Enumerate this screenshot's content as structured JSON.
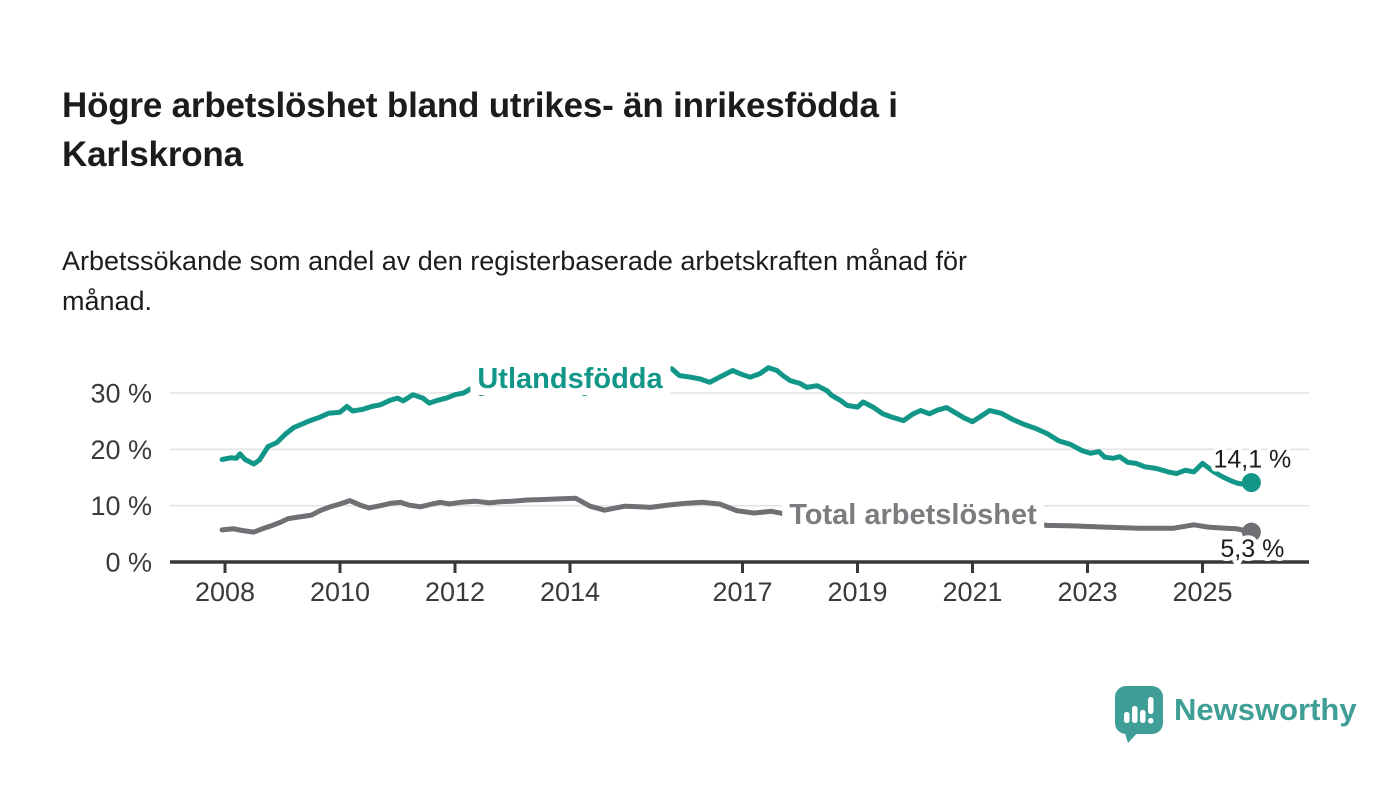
{
  "header": {
    "title_lines": [
      "Högre arbetslöshet bland utrikes- än inrikesfödda i",
      "Karlskrona"
    ],
    "subtitle_lines": [
      "Arbetssökande som andel av den registerbaserade arbetskraften månad för",
      "månad."
    ]
  },
  "footer": {
    "brand": "Newsworthy",
    "logo_icon": "bar-chart-speech-bubble-icon"
  },
  "colors": {
    "teal_line": "#119688",
    "gray_line": "#6f6f74",
    "gray_label": "#7b7b80",
    "axis": "#383838",
    "tick_text": "#3a3a3a",
    "grid": "#e3e3e3",
    "value_text": "#1c1c1c",
    "logo": "#3f9e96",
    "halo": "#ffffff"
  },
  "chart_data": {
    "type": "line",
    "title": "Högre arbetslöshet bland utrikes- än inrikesfödda i Karlskrona",
    "subtitle": "Arbetssökande som andel av den registerbaserade arbetskraften månad för månad.",
    "grid": true,
    "legend_position": "inline-labels",
    "x_axis": {
      "range": [
        2007.05,
        2026.85
      ],
      "ticks": [
        2008,
        2010,
        2012,
        2014,
        2017,
        2019,
        2021,
        2023,
        2025
      ],
      "tick_labels": [
        "2008",
        "2010",
        "2012",
        "2014",
        "2017",
        "2019",
        "2021",
        "2023",
        "2025"
      ]
    },
    "y_axis": {
      "range": [
        0,
        36
      ],
      "ticks": [
        0,
        10,
        20,
        30
      ],
      "tick_labels": [
        "0 %",
        "10 %",
        "20 %",
        "30 %"
      ]
    },
    "series": [
      {
        "name": "Utlandsfödda",
        "color": "#119688",
        "end_label": "14,1 %",
        "end_value": 14.1,
        "points": [
          [
            2007.95,
            18.2
          ],
          [
            2008.1,
            18.5
          ],
          [
            2008.2,
            18.4
          ],
          [
            2008.26,
            19.2
          ],
          [
            2008.35,
            18.2
          ],
          [
            2008.5,
            17.4
          ],
          [
            2008.6,
            18.1
          ],
          [
            2008.75,
            20.5
          ],
          [
            2008.9,
            21.2
          ],
          [
            2009.05,
            22.7
          ],
          [
            2009.2,
            23.9
          ],
          [
            2009.3,
            24.3
          ],
          [
            2009.48,
            25.1
          ],
          [
            2009.65,
            25.7
          ],
          [
            2009.8,
            26.4
          ],
          [
            2010.0,
            26.6
          ],
          [
            2010.12,
            27.6
          ],
          [
            2010.22,
            26.8
          ],
          [
            2010.4,
            27.1
          ],
          [
            2010.55,
            27.6
          ],
          [
            2010.7,
            27.9
          ],
          [
            2010.87,
            28.7
          ],
          [
            2011.0,
            29.1
          ],
          [
            2011.1,
            28.6
          ],
          [
            2011.27,
            29.7
          ],
          [
            2011.44,
            29.1
          ],
          [
            2011.55,
            28.2
          ],
          [
            2011.7,
            28.7
          ],
          [
            2011.85,
            29.1
          ],
          [
            2012.0,
            29.7
          ],
          [
            2012.15,
            30.0
          ],
          [
            2012.3,
            30.9
          ],
          [
            2012.45,
            29.9
          ],
          [
            2012.6,
            30.3
          ],
          [
            2012.8,
            30.6
          ],
          [
            2013.0,
            30.6
          ],
          [
            2013.2,
            31.1
          ],
          [
            2013.45,
            31.4
          ],
          [
            2013.7,
            31.3
          ],
          [
            2013.95,
            31.2
          ],
          [
            2014.25,
            29.9
          ],
          [
            2014.5,
            30.9
          ],
          [
            2014.75,
            30.6
          ],
          [
            2014.95,
            30.1
          ],
          [
            2015.2,
            31.3
          ],
          [
            2015.45,
            32.6
          ],
          [
            2015.6,
            34.5
          ],
          [
            2015.77,
            34.3
          ],
          [
            2015.9,
            33.1
          ],
          [
            2016.1,
            32.8
          ],
          [
            2016.26,
            32.5
          ],
          [
            2016.43,
            31.9
          ],
          [
            2016.6,
            32.8
          ],
          [
            2016.83,
            34.0
          ],
          [
            2016.96,
            33.4
          ],
          [
            2017.13,
            32.8
          ],
          [
            2017.3,
            33.4
          ],
          [
            2017.45,
            34.5
          ],
          [
            2017.6,
            34.0
          ],
          [
            2017.7,
            33.1
          ],
          [
            2017.83,
            32.2
          ],
          [
            2018.0,
            31.7
          ],
          [
            2018.12,
            31.0
          ],
          [
            2018.3,
            31.3
          ],
          [
            2018.47,
            30.4
          ],
          [
            2018.55,
            29.6
          ],
          [
            2018.7,
            28.7
          ],
          [
            2018.82,
            27.8
          ],
          [
            2019.0,
            27.5
          ],
          [
            2019.1,
            28.4
          ],
          [
            2019.27,
            27.5
          ],
          [
            2019.44,
            26.3
          ],
          [
            2019.6,
            25.7
          ],
          [
            2019.8,
            25.1
          ],
          [
            2019.97,
            26.3
          ],
          [
            2020.1,
            26.9
          ],
          [
            2020.25,
            26.3
          ],
          [
            2020.4,
            27.0
          ],
          [
            2020.55,
            27.4
          ],
          [
            2020.7,
            26.5
          ],
          [
            2020.85,
            25.6
          ],
          [
            2021.0,
            24.9
          ],
          [
            2021.15,
            25.9
          ],
          [
            2021.3,
            26.9
          ],
          [
            2021.5,
            26.4
          ],
          [
            2021.7,
            25.3
          ],
          [
            2021.9,
            24.4
          ],
          [
            2022.1,
            23.7
          ],
          [
            2022.3,
            22.8
          ],
          [
            2022.5,
            21.5
          ],
          [
            2022.7,
            20.9
          ],
          [
            2022.9,
            19.8
          ],
          [
            2023.05,
            19.3
          ],
          [
            2023.2,
            19.6
          ],
          [
            2023.3,
            18.6
          ],
          [
            2023.45,
            18.4
          ],
          [
            2023.56,
            18.7
          ],
          [
            2023.7,
            17.7
          ],
          [
            2023.85,
            17.5
          ],
          [
            2024.0,
            16.9
          ],
          [
            2024.2,
            16.6
          ],
          [
            2024.4,
            16.0
          ],
          [
            2024.55,
            15.7
          ],
          [
            2024.7,
            16.3
          ],
          [
            2024.85,
            16.0
          ],
          [
            2025.0,
            17.5
          ],
          [
            2025.2,
            16.0
          ],
          [
            2025.35,
            15.1
          ],
          [
            2025.5,
            14.4
          ],
          [
            2025.6,
            14.0
          ],
          [
            2025.72,
            13.8
          ],
          [
            2025.85,
            14.1
          ]
        ]
      },
      {
        "name": "Total arbetslöshet",
        "color": "#6f6f74",
        "end_label": "5,3 %",
        "end_value": 5.3,
        "points": [
          [
            2007.95,
            5.7
          ],
          [
            2008.15,
            5.9
          ],
          [
            2008.3,
            5.6
          ],
          [
            2008.5,
            5.3
          ],
          [
            2008.65,
            5.9
          ],
          [
            2008.8,
            6.4
          ],
          [
            2008.95,
            7.0
          ],
          [
            2009.1,
            7.7
          ],
          [
            2009.3,
            8.0
          ],
          [
            2009.5,
            8.3
          ],
          [
            2009.65,
            9.1
          ],
          [
            2009.83,
            9.8
          ],
          [
            2010.0,
            10.3
          ],
          [
            2010.17,
            10.9
          ],
          [
            2010.35,
            10.1
          ],
          [
            2010.5,
            9.6
          ],
          [
            2010.7,
            10.0
          ],
          [
            2010.87,
            10.4
          ],
          [
            2011.05,
            10.6
          ],
          [
            2011.2,
            10.1
          ],
          [
            2011.4,
            9.8
          ],
          [
            2011.6,
            10.3
          ],
          [
            2011.75,
            10.6
          ],
          [
            2011.9,
            10.3
          ],
          [
            2012.1,
            10.6
          ],
          [
            2012.35,
            10.8
          ],
          [
            2012.6,
            10.5
          ],
          [
            2012.8,
            10.7
          ],
          [
            2013.0,
            10.8
          ],
          [
            2013.25,
            11.0
          ],
          [
            2013.55,
            11.1
          ],
          [
            2013.8,
            11.2
          ],
          [
            2014.1,
            11.3
          ],
          [
            2014.35,
            9.9
          ],
          [
            2014.6,
            9.2
          ],
          [
            2014.95,
            9.9
          ],
          [
            2015.2,
            9.8
          ],
          [
            2015.4,
            9.7
          ],
          [
            2015.7,
            10.1
          ],
          [
            2016.0,
            10.4
          ],
          [
            2016.3,
            10.6
          ],
          [
            2016.6,
            10.3
          ],
          [
            2016.9,
            9.1
          ],
          [
            2017.2,
            8.7
          ],
          [
            2017.5,
            9.0
          ],
          [
            2017.8,
            8.4
          ],
          [
            2018.1,
            8.1
          ],
          [
            2018.5,
            7.9
          ],
          [
            2019.0,
            7.6
          ],
          [
            2019.5,
            7.3
          ],
          [
            2020.0,
            7.8
          ],
          [
            2020.4,
            8.6
          ],
          [
            2020.8,
            8.4
          ],
          [
            2021.2,
            7.9
          ],
          [
            2021.6,
            7.3
          ],
          [
            2022.0,
            6.8
          ],
          [
            2022.3,
            6.5
          ],
          [
            2022.75,
            6.4
          ],
          [
            2023.3,
            6.2
          ],
          [
            2023.9,
            6.0
          ],
          [
            2024.5,
            6.0
          ],
          [
            2024.85,
            6.6
          ],
          [
            2025.1,
            6.2
          ],
          [
            2025.4,
            6.0
          ],
          [
            2025.6,
            5.9
          ],
          [
            2025.85,
            5.3
          ]
        ]
      }
    ]
  }
}
